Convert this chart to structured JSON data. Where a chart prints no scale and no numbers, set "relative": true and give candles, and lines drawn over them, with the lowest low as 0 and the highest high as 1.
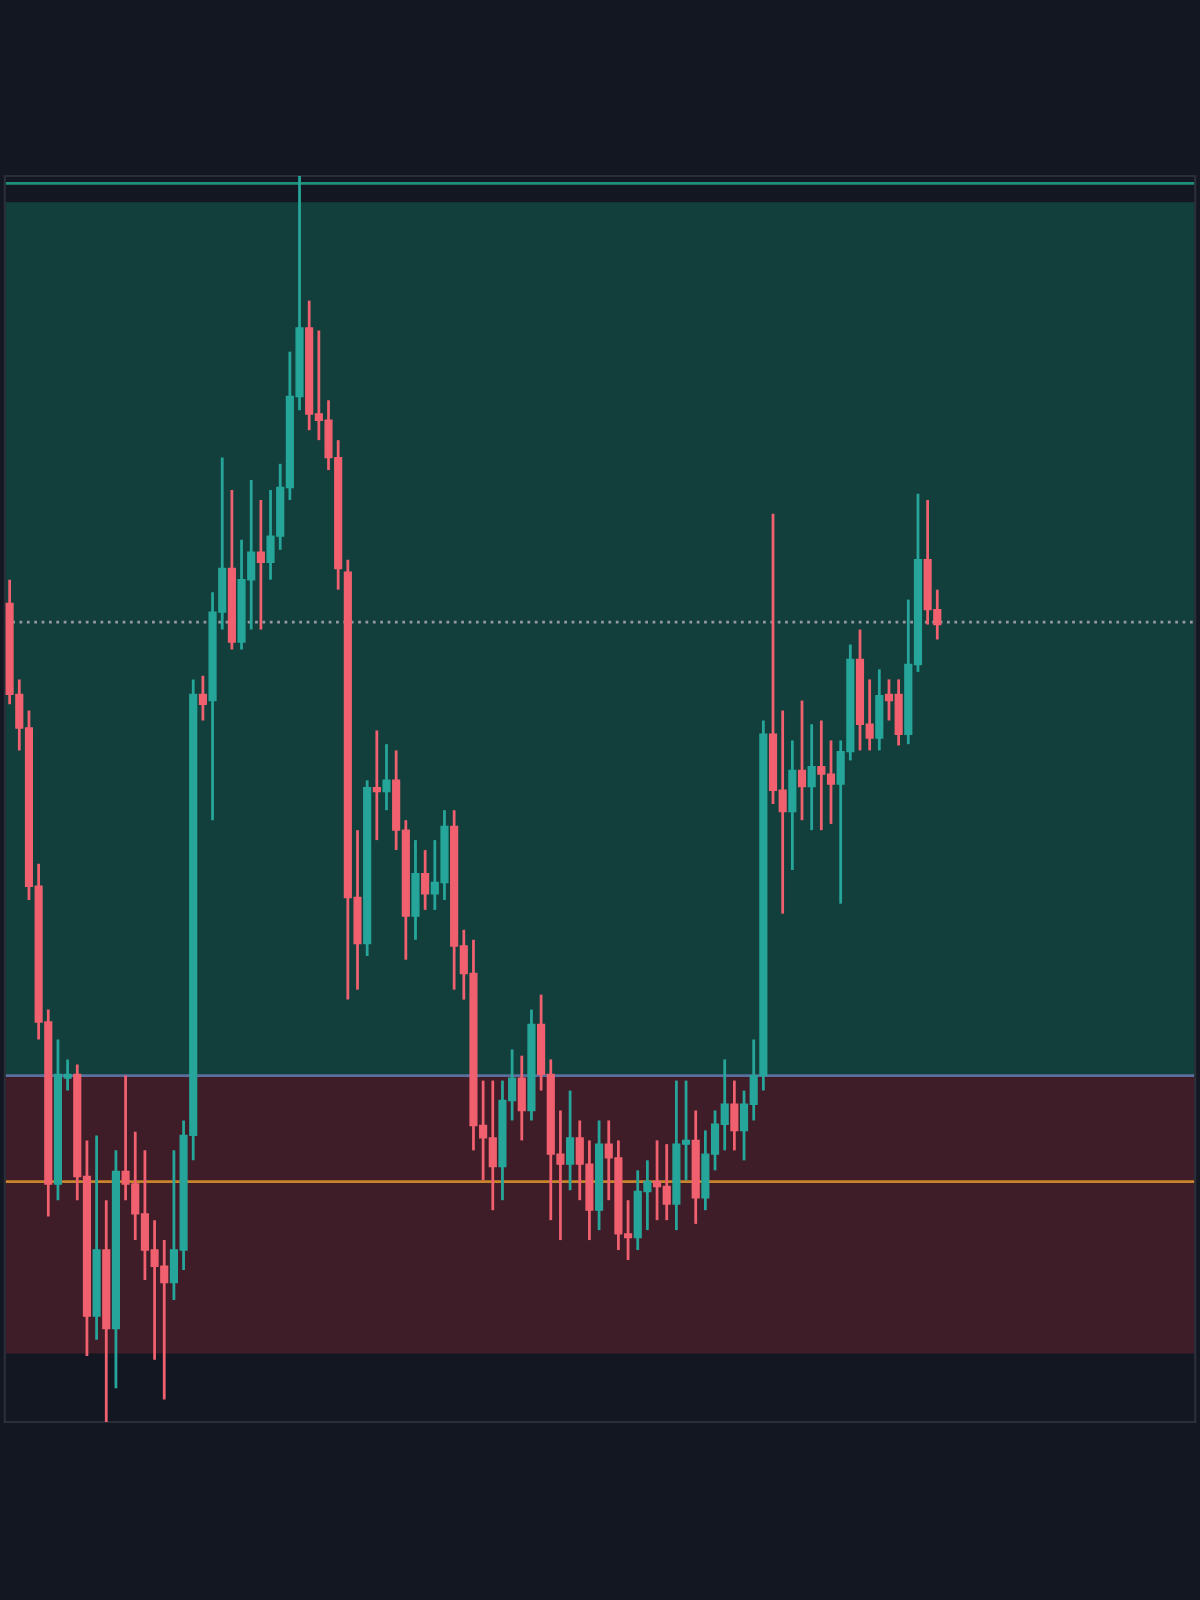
{
  "chart_data": {
    "type": "candlestick",
    "relative": true,
    "tick_labels": false,
    "categories": [
      null,
      null,
      null,
      null,
      null,
      null,
      null,
      null,
      null,
      null,
      null,
      null,
      null,
      null,
      null,
      null,
      null,
      null,
      null,
      null,
      null,
      null,
      null,
      null,
      null,
      null,
      null,
      null,
      null,
      null,
      null,
      null,
      null,
      null,
      null,
      null,
      null,
      null,
      null,
      null,
      null,
      null,
      null,
      null,
      null,
      null,
      null,
      null,
      null,
      null,
      null,
      null,
      null,
      null,
      null,
      null,
      null,
      null,
      null,
      null,
      null,
      null,
      null,
      null,
      null,
      null,
      null,
      null,
      null,
      null,
      null,
      null,
      null,
      null,
      null,
      null,
      null,
      null,
      null,
      null,
      null,
      null,
      null,
      null,
      null,
      null,
      null,
      null,
      null,
      null,
      null,
      null,
      null,
      null,
      null,
      null,
      null
    ],
    "ohlc": [
      [
        0.657,
        0.676,
        0.576,
        0.584
      ],
      [
        0.584,
        0.596,
        0.539,
        0.557
      ],
      [
        0.557,
        0.571,
        0.419,
        0.43
      ],
      [
        0.43,
        0.448,
        0.307,
        0.321
      ],
      [
        0.321,
        0.331,
        0.165,
        0.191
      ],
      [
        0.191,
        0.307,
        0.178,
        0.279
      ],
      [
        0.276,
        0.291,
        0.266,
        0.279
      ],
      [
        0.279,
        0.287,
        0.178,
        0.197
      ],
      [
        0.197,
        0.226,
        0.053,
        0.085
      ],
      [
        0.085,
        0.23,
        0.066,
        0.138
      ],
      [
        0.138,
        0.178,
        0.0,
        0.075
      ],
      [
        0.075,
        0.218,
        0.027,
        0.201
      ],
      [
        0.201,
        0.278,
        0.178,
        0.191
      ],
      [
        0.191,
        0.233,
        0.146,
        0.167
      ],
      [
        0.167,
        0.218,
        0.114,
        0.138
      ],
      [
        0.138,
        0.162,
        0.05,
        0.125
      ],
      [
        0.125,
        0.146,
        0.018,
        0.112
      ],
      [
        0.112,
        0.218,
        0.098,
        0.138
      ],
      [
        0.138,
        0.242,
        0.122,
        0.23
      ],
      [
        0.23,
        0.596,
        0.21,
        0.584
      ],
      [
        0.584,
        0.599,
        0.563,
        0.576
      ],
      [
        0.579,
        0.666,
        0.483,
        0.65
      ],
      [
        0.65,
        0.774,
        0.636,
        0.685
      ],
      [
        0.685,
        0.748,
        0.62,
        0.626
      ],
      [
        0.626,
        0.708,
        0.62,
        0.676
      ],
      [
        0.676,
        0.756,
        0.636,
        0.698
      ],
      [
        0.698,
        0.74,
        0.636,
        0.69
      ],
      [
        0.69,
        0.748,
        0.676,
        0.711
      ],
      [
        0.711,
        0.769,
        0.7,
        0.75
      ],
      [
        0.75,
        0.859,
        0.74,
        0.823
      ],
      [
        0.823,
        1.0,
        0.812,
        0.878
      ],
      [
        0.878,
        0.9,
        0.796,
        0.809
      ],
      [
        0.809,
        0.876,
        0.788,
        0.804
      ],
      [
        0.804,
        0.82,
        0.764,
        0.774
      ],
      [
        0.774,
        0.788,
        0.668,
        0.685
      ],
      [
        0.682,
        0.692,
        0.339,
        0.421
      ],
      [
        0.421,
        0.475,
        0.347,
        0.384
      ],
      [
        0.384,
        0.515,
        0.374,
        0.509
      ],
      [
        0.509,
        0.555,
        0.467,
        0.506
      ],
      [
        0.506,
        0.544,
        0.491,
        0.515
      ],
      [
        0.515,
        0.539,
        0.459,
        0.475
      ],
      [
        0.475,
        0.483,
        0.371,
        0.406
      ],
      [
        0.406,
        0.467,
        0.387,
        0.44
      ],
      [
        0.44,
        0.459,
        0.411,
        0.424
      ],
      [
        0.424,
        0.467,
        0.411,
        0.433
      ],
      [
        0.433,
        0.491,
        0.419,
        0.478
      ],
      [
        0.478,
        0.491,
        0.347,
        0.382
      ],
      [
        0.382,
        0.395,
        0.339,
        0.36
      ],
      [
        0.36,
        0.387,
        0.218,
        0.238
      ],
      [
        0.238,
        0.274,
        0.194,
        0.228
      ],
      [
        0.228,
        0.274,
        0.17,
        0.205
      ],
      [
        0.205,
        0.274,
        0.178,
        0.258
      ],
      [
        0.258,
        0.299,
        0.242,
        0.276
      ],
      [
        0.276,
        0.294,
        0.226,
        0.25
      ],
      [
        0.25,
        0.331,
        0.242,
        0.319
      ],
      [
        0.319,
        0.343,
        0.266,
        0.279
      ],
      [
        0.279,
        0.291,
        0.162,
        0.215
      ],
      [
        0.215,
        0.25,
        0.146,
        0.207
      ],
      [
        0.207,
        0.266,
        0.186,
        0.228
      ],
      [
        0.228,
        0.242,
        0.178,
        0.207
      ],
      [
        0.207,
        0.226,
        0.146,
        0.17
      ],
      [
        0.17,
        0.242,
        0.154,
        0.223
      ],
      [
        0.223,
        0.242,
        0.178,
        0.212
      ],
      [
        0.212,
        0.226,
        0.138,
        0.151
      ],
      [
        0.151,
        0.178,
        0.13,
        0.148
      ],
      [
        0.148,
        0.202,
        0.138,
        0.185
      ],
      [
        0.185,
        0.21,
        0.154,
        0.193
      ],
      [
        0.193,
        0.226,
        0.162,
        0.189
      ],
      [
        0.189,
        0.223,
        0.162,
        0.175
      ],
      [
        0.175,
        0.274,
        0.154,
        0.223
      ],
      [
        0.223,
        0.274,
        0.194,
        0.226
      ],
      [
        0.226,
        0.25,
        0.159,
        0.18
      ],
      [
        0.18,
        0.234,
        0.17,
        0.215
      ],
      [
        0.215,
        0.25,
        0.202,
        0.239
      ],
      [
        0.239,
        0.291,
        0.218,
        0.255
      ],
      [
        0.255,
        0.274,
        0.218,
        0.234
      ],
      [
        0.234,
        0.266,
        0.21,
        0.255
      ],
      [
        0.255,
        0.307,
        0.242,
        0.278
      ],
      [
        0.278,
        0.563,
        0.266,
        0.552
      ],
      [
        0.552,
        0.729,
        0.496,
        0.507
      ],
      [
        0.507,
        0.571,
        0.408,
        0.49
      ],
      [
        0.49,
        0.547,
        0.443,
        0.523
      ],
      [
        0.523,
        0.579,
        0.483,
        0.51
      ],
      [
        0.51,
        0.56,
        0.475,
        0.526
      ],
      [
        0.526,
        0.563,
        0.475,
        0.52
      ],
      [
        0.52,
        0.547,
        0.48,
        0.512
      ],
      [
        0.512,
        0.547,
        0.416,
        0.538
      ],
      [
        0.538,
        0.624,
        0.531,
        0.612
      ],
      [
        0.612,
        0.636,
        0.539,
        0.56
      ],
      [
        0.56,
        0.596,
        0.539,
        0.549
      ],
      [
        0.549,
        0.604,
        0.539,
        0.583
      ],
      [
        0.584,
        0.596,
        0.563,
        0.579
      ],
      [
        0.584,
        0.596,
        0.543,
        0.552
      ],
      [
        0.552,
        0.66,
        0.544,
        0.608
      ],
      [
        0.608,
        0.745,
        0.602,
        0.692
      ],
      [
        0.692,
        0.74,
        0.64,
        0.652
      ],
      [
        0.652,
        0.668,
        0.628,
        0.64
      ]
    ],
    "ref_lines": [
      {
        "axis": "y",
        "value": 0.994,
        "color": "#1f8f7a",
        "line_style": "solid"
      },
      {
        "axis": "y",
        "value": 0.642,
        "color": "#9598a1",
        "line_style": "dotted"
      },
      {
        "axis": "y",
        "value": 0.278,
        "color": "#5b6f9e",
        "line_style": "solid"
      },
      {
        "axis": "y",
        "value": 0.193,
        "color": "#c8842a",
        "line_style": "solid"
      }
    ],
    "bands": [
      {
        "axis": "y",
        "from": 0.278,
        "to": 0.979,
        "color": "#134a44"
      },
      {
        "axis": "y",
        "from": 0.055,
        "to": 0.278,
        "color": "#4a1f2a"
      }
    ]
  }
}
